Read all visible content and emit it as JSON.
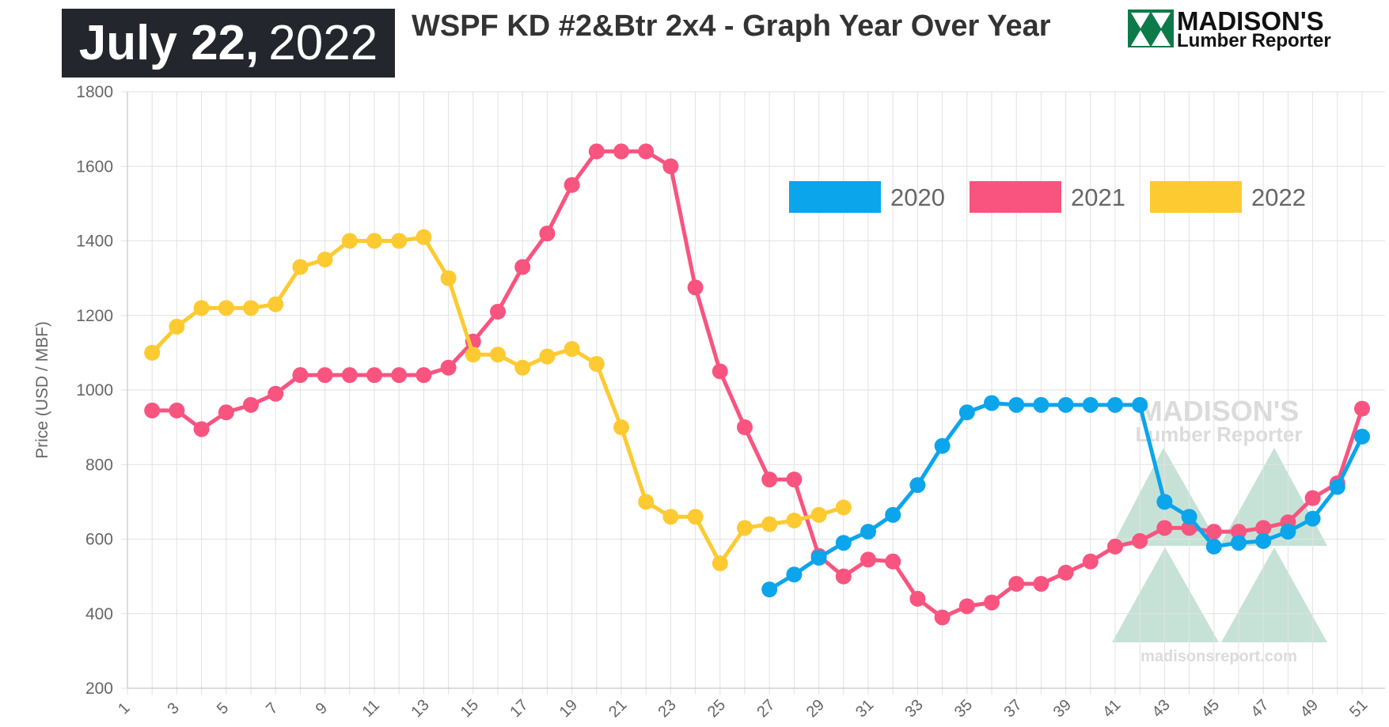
{
  "header": {
    "date_bold": "July 22,",
    "date_year": "2022",
    "title": "WSPF KD #2&Btr 2x4 - Graph Year Over Year"
  },
  "logo": {
    "line1": "MADISON'S",
    "line2": "Lumber Reporter",
    "watermark_url": "madisonsreport.com"
  },
  "chart_data": {
    "type": "line",
    "title": "WSPF KD #2&Btr 2x4 - Graph Year Over Year",
    "xlabel": "",
    "ylabel": "Price (USD / MBF)",
    "ylim": [
      200,
      1800
    ],
    "yticks": [
      200,
      400,
      600,
      800,
      1000,
      1200,
      1400,
      1600,
      1800
    ],
    "xlim": [
      1,
      51
    ],
    "xticks": [
      1,
      3,
      5,
      7,
      9,
      11,
      13,
      15,
      17,
      19,
      21,
      23,
      25,
      27,
      29,
      31,
      33,
      35,
      37,
      39,
      41,
      43,
      45,
      47,
      49,
      51
    ],
    "grid": true,
    "legend_position": "top-right",
    "series": [
      {
        "name": "2020",
        "color": "#0ba5ec",
        "x": [
          27,
          28,
          29,
          30,
          31,
          32,
          33,
          34,
          35,
          36,
          37,
          38,
          39,
          40,
          41,
          42,
          43,
          44,
          45,
          46,
          47,
          48,
          49,
          50,
          51
        ],
        "values": [
          465,
          505,
          550,
          590,
          620,
          665,
          745,
          850,
          940,
          965,
          960,
          960,
          960,
          960,
          960,
          960,
          700,
          660,
          580,
          590,
          595,
          620,
          655,
          740,
          875
        ]
      },
      {
        "name": "2021",
        "color": "#f8547f",
        "x": [
          2,
          3,
          4,
          5,
          6,
          7,
          8,
          9,
          10,
          11,
          12,
          13,
          14,
          15,
          16,
          17,
          18,
          19,
          20,
          21,
          22,
          23,
          24,
          25,
          26,
          27,
          28,
          29,
          30,
          31,
          32,
          33,
          34,
          35,
          36,
          37,
          38,
          39,
          40,
          41,
          42,
          43,
          44,
          45,
          46,
          47,
          48,
          49,
          50,
          51
        ],
        "values": [
          945,
          945,
          895,
          940,
          960,
          990,
          1040,
          1040,
          1040,
          1040,
          1040,
          1040,
          1060,
          1130,
          1210,
          1330,
          1420,
          1550,
          1640,
          1640,
          1640,
          1600,
          1275,
          1050,
          900,
          760,
          760,
          555,
          500,
          545,
          540,
          440,
          390,
          420,
          430,
          480,
          480,
          510,
          540,
          580,
          595,
          630,
          630,
          620,
          620,
          630,
          645,
          710,
          750,
          950
        ]
      },
      {
        "name": "2022",
        "color": "#fdca31",
        "x": [
          2,
          3,
          4,
          5,
          6,
          7,
          8,
          9,
          10,
          11,
          12,
          13,
          14,
          15,
          16,
          17,
          18,
          19,
          20,
          21,
          22,
          23,
          24,
          25,
          26,
          27,
          28,
          29,
          30
        ],
        "values": [
          1100,
          1170,
          1220,
          1220,
          1220,
          1230,
          1330,
          1350,
          1400,
          1400,
          1400,
          1410,
          1300,
          1095,
          1095,
          1060,
          1090,
          1110,
          1070,
          900,
          700,
          660,
          660,
          535,
          630,
          640,
          650,
          665,
          685
        ]
      }
    ]
  }
}
